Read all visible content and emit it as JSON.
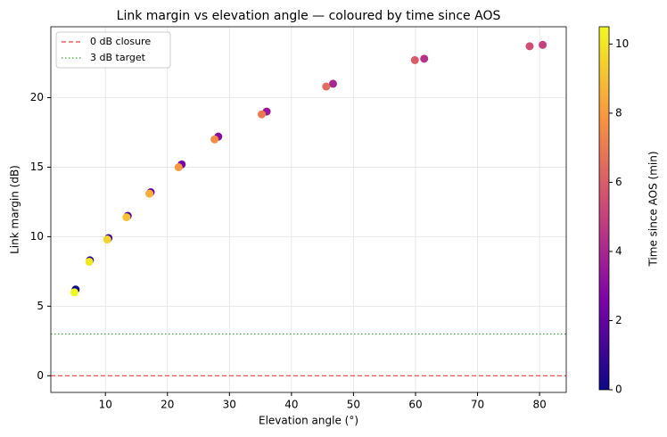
{
  "chart_data": {
    "type": "scatter",
    "title": "Link margin vs elevation angle — coloured by time since AOS",
    "xlabel": "Elevation angle (°)",
    "ylabel": "Link margin (dB)",
    "x": [
      5.2,
      7.5,
      10.5,
      13.6,
      17.3,
      22.3,
      28.2,
      36.0,
      46.7,
      61.4,
      80.5,
      78.4,
      59.9,
      45.6,
      35.2,
      27.6,
      21.8,
      17.1,
      13.4,
      10.3,
      7.4,
      5.0
    ],
    "y": [
      6.2,
      8.3,
      9.9,
      11.5,
      13.2,
      15.2,
      17.2,
      19.0,
      21.0,
      22.8,
      23.8,
      23.7,
      22.7,
      20.8,
      18.8,
      17.0,
      15.0,
      13.1,
      11.4,
      9.8,
      8.2,
      6.0
    ],
    "c": [
      0,
      0.5,
      1,
      1.5,
      2,
      2.5,
      3,
      3.5,
      4,
      4.5,
      5,
      5.5,
      6,
      6.5,
      7,
      7.5,
      8,
      8.5,
      9,
      9.5,
      10,
      10.5
    ],
    "colormap": [
      "#0d0887",
      "#7e03a8",
      "#cc4778",
      "#f89540",
      "#f0f921"
    ],
    "clim": [
      0,
      10.5
    ],
    "cticks": [
      0,
      2,
      4,
      6,
      8,
      10
    ],
    "colorbar_label": "Time since AOS (min)",
    "xlim": [
      1.2,
      84.3
    ],
    "ylim": [
      -1.2,
      25.1
    ],
    "xticks": [
      10,
      20,
      30,
      40,
      50,
      60,
      70,
      80
    ],
    "yticks": [
      0,
      5,
      10,
      15,
      20
    ],
    "grid": true,
    "legend": "upper left",
    "reference_lines": [
      {
        "name": "0 dB closure",
        "value": 0,
        "color": "#e8443a",
        "dash": "5,3"
      },
      {
        "name": "3 dB target",
        "value": 3,
        "color": "#3aa83a",
        "dash": "1.5,2.5"
      }
    ]
  }
}
